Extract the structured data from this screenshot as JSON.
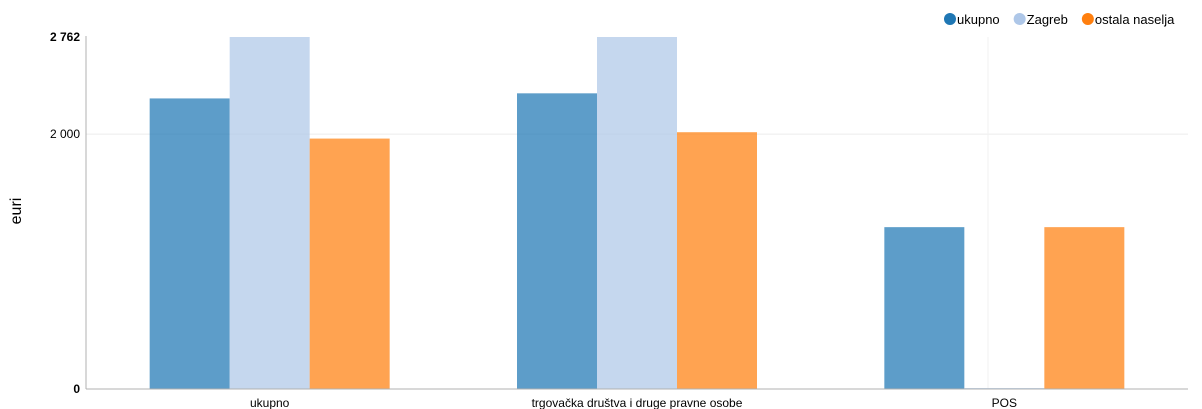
{
  "chart_data": {
    "type": "bar",
    "title": "",
    "ylabel": "euri",
    "xlabel": "",
    "categories": [
      "ukupno",
      "trgovačka društva i druge pravne osobe",
      "POS"
    ],
    "series": [
      {
        "name": "ukupno",
        "color": "#1f77b4",
        "values": [
          2280,
          2320,
          1270
        ]
      },
      {
        "name": "Zagreb",
        "color": "#aec7e8",
        "values": [
          2762,
          2762,
          5
        ]
      },
      {
        "name": "ostala naselja",
        "color": "#ff7f0e",
        "values": [
          1965,
          2015,
          1270
        ]
      }
    ],
    "ylim": [
      0,
      2762
    ],
    "y_ticks": [
      {
        "value": 0,
        "label": "0",
        "bold": true
      },
      {
        "value": 2000,
        "label": "2 000",
        "bold": false
      },
      {
        "value": 2762,
        "label": "2 762",
        "bold": true
      }
    ],
    "grid": true,
    "legend_position": "top-right"
  }
}
